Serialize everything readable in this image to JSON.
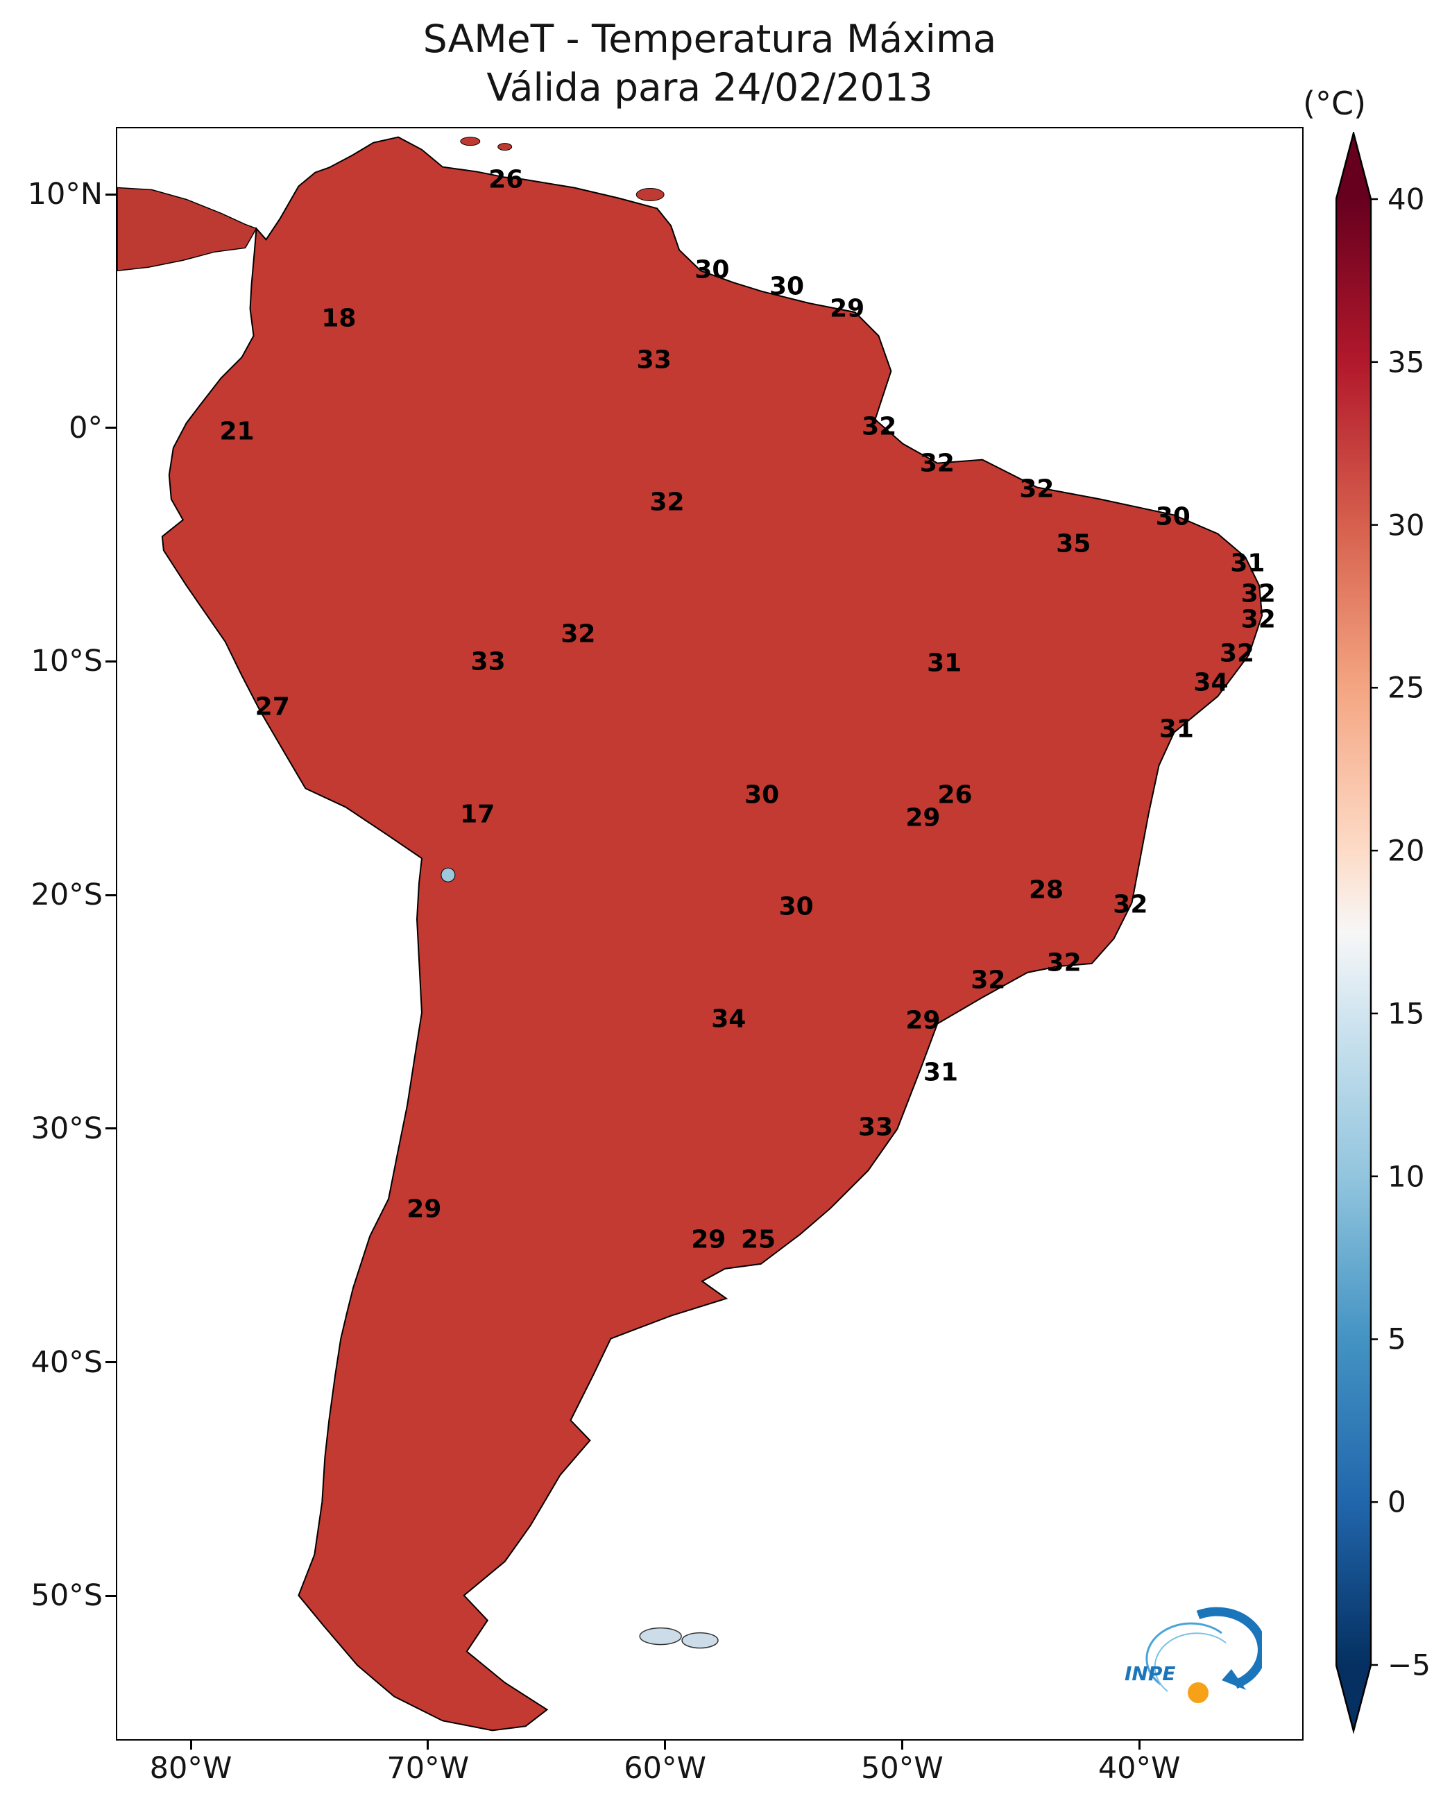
{
  "title": {
    "line1": "SAMeT - Temperatura Máxima",
    "line2": "Válida para 24/02/2013"
  },
  "colorbar": {
    "unit_label": "(°C)",
    "tick_labels": [
      "40",
      "35",
      "30",
      "25",
      "20",
      "15",
      "10",
      "5",
      "0",
      "−5"
    ],
    "top_color": "#67001f",
    "bottom_color": "#053061"
  },
  "axes": {
    "y_tick_labels": [
      "10°N",
      "0°",
      "10°S",
      "20°S",
      "30°S",
      "40°S",
      "50°S"
    ],
    "x_tick_labels": [
      "80°W",
      "70°W",
      "60°W",
      "50°W",
      "40°W"
    ]
  },
  "logo": {
    "text": "INPE"
  },
  "chart_data": {
    "type": "heatmap",
    "title": "SAMeT - Temperatura Máxima",
    "subtitle": "Válida para 24/02/2013",
    "date": "24/02/2013",
    "unit": "°C",
    "region": "South America",
    "colormap": "RdBu reversed (dark blue cold to dark red hot)",
    "colorbar_range": [
      -5,
      40
    ],
    "colorbar_ticks": [
      40,
      35,
      30,
      25,
      20,
      15,
      10,
      5,
      0,
      -5
    ],
    "colorbar_extend": "both",
    "lat_ticks": [
      "10°N",
      "0°",
      "10°S",
      "20°S",
      "30°S",
      "40°S",
      "50°S"
    ],
    "lon_ticks": [
      "80°W",
      "70°W",
      "60°W",
      "50°W",
      "40°W"
    ],
    "temperature_labels": [
      {
        "value": 26,
        "x_pct": 32.8,
        "y_pct": 3.2
      },
      {
        "value": 30,
        "x_pct": 50.2,
        "y_pct": 8.8
      },
      {
        "value": 30,
        "x_pct": 56.5,
        "y_pct": 9.8
      },
      {
        "value": 29,
        "x_pct": 61.6,
        "y_pct": 11.2
      },
      {
        "value": 18,
        "x_pct": 18.7,
        "y_pct": 11.8
      },
      {
        "value": 33,
        "x_pct": 45.3,
        "y_pct": 14.4
      },
      {
        "value": 21,
        "x_pct": 10.1,
        "y_pct": 18.8
      },
      {
        "value": 32,
        "x_pct": 64.3,
        "y_pct": 18.5
      },
      {
        "value": 32,
        "x_pct": 69.2,
        "y_pct": 20.8
      },
      {
        "value": 32,
        "x_pct": 46.4,
        "y_pct": 23.2
      },
      {
        "value": 32,
        "x_pct": 77.6,
        "y_pct": 22.4
      },
      {
        "value": 30,
        "x_pct": 89.1,
        "y_pct": 24.1
      },
      {
        "value": 35,
        "x_pct": 80.7,
        "y_pct": 25.8
      },
      {
        "value": 31,
        "x_pct": 95.4,
        "y_pct": 27.0
      },
      {
        "value": 32,
        "x_pct": 96.3,
        "y_pct": 28.9
      },
      {
        "value": 32,
        "x_pct": 96.3,
        "y_pct": 30.5
      },
      {
        "value": 32,
        "x_pct": 38.9,
        "y_pct": 31.4
      },
      {
        "value": 33,
        "x_pct": 31.3,
        "y_pct": 33.1
      },
      {
        "value": 31,
        "x_pct": 69.8,
        "y_pct": 33.2
      },
      {
        "value": 32,
        "x_pct": 94.5,
        "y_pct": 32.6
      },
      {
        "value": 34,
        "x_pct": 92.3,
        "y_pct": 34.4
      },
      {
        "value": 27,
        "x_pct": 13.1,
        "y_pct": 35.9
      },
      {
        "value": 31,
        "x_pct": 89.4,
        "y_pct": 37.3
      },
      {
        "value": 26,
        "x_pct": 70.7,
        "y_pct": 41.4
      },
      {
        "value": 29,
        "x_pct": 68.0,
        "y_pct": 42.8
      },
      {
        "value": 30,
        "x_pct": 54.4,
        "y_pct": 41.4
      },
      {
        "value": 17,
        "x_pct": 30.4,
        "y_pct": 42.6
      },
      {
        "value": 28,
        "x_pct": 78.4,
        "y_pct": 47.3
      },
      {
        "value": 32,
        "x_pct": 85.5,
        "y_pct": 48.2
      },
      {
        "value": 30,
        "x_pct": 57.3,
        "y_pct": 48.3
      },
      {
        "value": 32,
        "x_pct": 79.9,
        "y_pct": 51.8
      },
      {
        "value": 32,
        "x_pct": 73.5,
        "y_pct": 52.9
      },
      {
        "value": 34,
        "x_pct": 51.6,
        "y_pct": 55.3
      },
      {
        "value": 29,
        "x_pct": 68.0,
        "y_pct": 55.4
      },
      {
        "value": 31,
        "x_pct": 69.5,
        "y_pct": 58.6
      },
      {
        "value": 33,
        "x_pct": 64.0,
        "y_pct": 62.0
      },
      {
        "value": 29,
        "x_pct": 25.9,
        "y_pct": 67.1
      },
      {
        "value": 29,
        "x_pct": 49.9,
        "y_pct": 69.0
      },
      {
        "value": 25,
        "x_pct": 54.1,
        "y_pct": 69.0
      }
    ]
  }
}
